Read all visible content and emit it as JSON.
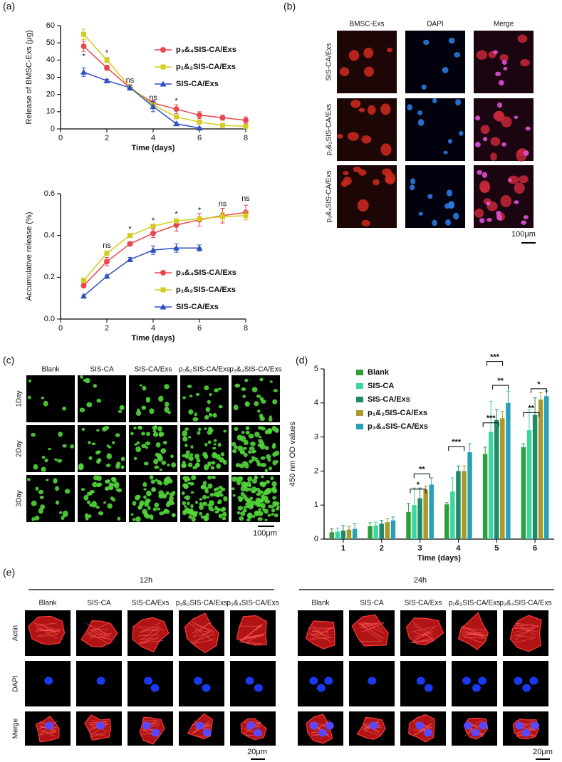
{
  "panel_labels": [
    "(a)",
    "(b)",
    "(c)",
    "(d)",
    "(e)"
  ],
  "chart_data": [
    {
      "type": "line",
      "xlabel": "Time (days)",
      "ylabel": "Release of BMSC-Exs (μg)",
      "x": [
        1,
        2,
        3,
        4,
        5,
        6,
        7,
        8
      ],
      "xlim": [
        0,
        8
      ],
      "xticks": [
        0,
        2,
        4,
        6,
        8
      ],
      "ylim": [
        0,
        60
      ],
      "yticks": [
        0,
        10,
        20,
        30,
        40,
        50,
        60
      ],
      "legend": "upper right",
      "series": [
        {
          "name": "p₃&₄SIS-CA/Exs",
          "color": "#e8474f",
          "marker": "circle",
          "values": [
            48,
            35.5,
            24,
            15,
            11.5,
            8,
            6.5,
            5
          ],
          "errors": [
            3,
            1.5,
            1,
            1.5,
            2.5,
            2,
            1.5,
            2
          ]
        },
        {
          "name": "p₁&₂SIS-CA/Exs",
          "color": "#d4cc20",
          "marker": "square",
          "values": [
            55,
            40,
            24.5,
            14,
            7,
            4,
            2,
            1.5
          ],
          "errors": [
            3,
            1.5,
            1,
            1,
            1,
            0.5,
            0.5,
            0.5
          ]
        },
        {
          "name": "SIS-CA/Exs",
          "color": "#2e4fc4",
          "marker": "triangle",
          "values": [
            33,
            28,
            24,
            13,
            3,
            0.5,
            null,
            null
          ],
          "errors": [
            2.5,
            0.8,
            1.5,
            3,
            1,
            0.5,
            null,
            null
          ]
        }
      ],
      "annotations": [
        {
          "x": 1,
          "y": 42,
          "text": "*"
        },
        {
          "x": 2,
          "y": 44,
          "text": "*"
        },
        {
          "x": 3,
          "y": 28,
          "text": "ns"
        },
        {
          "x": 4,
          "y": 18,
          "text": "ns"
        },
        {
          "x": 5,
          "y": 16,
          "text": "*"
        }
      ]
    },
    {
      "type": "line",
      "xlabel": "Time (days)",
      "ylabel": "Accumulative release (%)",
      "x": [
        1,
        2,
        3,
        4,
        5,
        6,
        7,
        8
      ],
      "xlim": [
        0,
        8
      ],
      "xticks": [
        0,
        2,
        4,
        6,
        8
      ],
      "ylim": [
        0,
        0.6
      ],
      "yticks": [
        {
          "value": 0,
          "label": "0.0"
        },
        0.2,
        0.4,
        0.6
      ],
      "legend": "lower right",
      "series": [
        {
          "name": "p₃&₄SIS-CA/Exs",
          "color": "#e8474f",
          "marker": "circle",
          "values": [
            0.16,
            0.275,
            0.36,
            0.41,
            0.45,
            0.475,
            0.495,
            0.51
          ],
          "errors": [
            0.01,
            0.02,
            0.01,
            0.02,
            0.03,
            0.03,
            0.035,
            0.035
          ]
        },
        {
          "name": "p₁&₂SIS-CA/Exs",
          "color": "#d4cc20",
          "marker": "square",
          "values": [
            0.185,
            0.315,
            0.4,
            0.445,
            0.47,
            0.48,
            0.49,
            0.495
          ],
          "errors": [
            0.01,
            0.01,
            0.01,
            0.01,
            0.01,
            0.01,
            0.02,
            0.02
          ]
        },
        {
          "name": "SIS-CA/Exs",
          "color": "#2e4fc4",
          "marker": "triangle",
          "values": [
            0.11,
            0.205,
            0.285,
            0.33,
            0.34,
            0.34,
            null,
            null
          ],
          "errors": [
            0.005,
            0.005,
            0.01,
            0.02,
            0.02,
            0.015,
            null,
            null
          ]
        }
      ],
      "annotations": [
        {
          "x": 2,
          "y": 0.35,
          "text": "ns"
        },
        {
          "x": 3,
          "y": 0.43,
          "text": "*"
        },
        {
          "x": 4,
          "y": 0.47,
          "text": "*"
        },
        {
          "x": 5,
          "y": 0.5,
          "text": "*"
        },
        {
          "x": 6,
          "y": 0.52,
          "text": "*"
        },
        {
          "x": 7,
          "y": 0.55,
          "text": "ns"
        },
        {
          "x": 8,
          "y": 0.575,
          "text": "ns"
        }
      ]
    },
    {
      "type": "bar",
      "xlabel": "Time (days)",
      "ylabel": "450 nm OD values",
      "categories": [
        "1",
        "2",
        "3",
        "4",
        "5",
        "6"
      ],
      "ylim": [
        0,
        5
      ],
      "yticks": [
        0,
        1,
        2,
        3,
        4,
        5
      ],
      "legend": "upper left",
      "series": [
        {
          "name": "Blank",
          "color": "#2e9e3c",
          "values": [
            0.2,
            0.38,
            0.8,
            1.02,
            2.5,
            2.7
          ],
          "errors": [
            0.1,
            0.1,
            0.25,
            0.05,
            0.2,
            0.1
          ]
        },
        {
          "name": "SIS-CA",
          "color": "#3ed6a0",
          "values": [
            0.22,
            0.4,
            1.0,
            1.4,
            3.15,
            3.2
          ],
          "errors": [
            0.1,
            0.1,
            0.5,
            0.4,
            0.9,
            0.6
          ]
        },
        {
          "name": "SIS-CA/Exs",
          "color": "#1f8a6a",
          "values": [
            0.25,
            0.45,
            1.2,
            2.0,
            3.5,
            3.65
          ],
          "errors": [
            0.15,
            0.1,
            0.3,
            0.15,
            0.3,
            0.5
          ]
        },
        {
          "name": "p₁&₂SIS-CA/Exs",
          "color": "#a89a28",
          "values": [
            0.28,
            0.5,
            1.45,
            2.0,
            3.55,
            4.1
          ],
          "errors": [
            0.1,
            0.1,
            0.1,
            0.15,
            0.2,
            0.2
          ]
        },
        {
          "name": "p₃&₄SIS-CA/Exs",
          "color": "#2aa0b8",
          "values": [
            0.3,
            0.55,
            1.6,
            2.55,
            4.0,
            4.2
          ],
          "errors": [
            0.15,
            0.1,
            0.2,
            0.25,
            0.35,
            0.15
          ]
        }
      ],
      "annotations": [
        {
          "x": 2.95,
          "y": 1.55,
          "text": "*"
        },
        {
          "x": 3.05,
          "y": 2.0,
          "text": "**"
        },
        {
          "x": 3.95,
          "y": 2.8,
          "text": "***"
        },
        {
          "x": 4.85,
          "y": 3.5,
          "text": "***"
        },
        {
          "x": 4.95,
          "y": 5.3,
          "text": "***"
        },
        {
          "x": 5.1,
          "y": 4.6,
          "text": "**"
        },
        {
          "x": 5.9,
          "y": 3.8,
          "text": "**"
        },
        {
          "x": 6.1,
          "y": 4.5,
          "text": "*"
        }
      ]
    }
  ],
  "panel_b": {
    "columns": [
      "BMSC-Exs",
      "DAPI",
      "Merge"
    ],
    "rows": [
      "SIS-CA/Exs",
      "p₁&₂SIS-CA/Exs",
      "p₃&₄SIS-CA/Exs"
    ],
    "scale_bar": "100μm"
  },
  "panel_c": {
    "columns": [
      "Blank",
      "SIS-CA",
      "SIS-CA/Exs",
      "p₁&₂SIS-CA/Exs",
      "p₃&₄SIS-CA/Exs"
    ],
    "rows": [
      "1Day",
      "2Day",
      "3Day"
    ],
    "scale_bar": "100μm"
  },
  "panel_e": {
    "groups": [
      "12h",
      "24h"
    ],
    "columns": [
      "Blank",
      "SIS-CA",
      "SIS-CA/Exs",
      "p₁&₂SIS-CA/Exs",
      "p₃&₄SIS-CA/Exs"
    ],
    "rows": [
      "Actin",
      "DAPI",
      "Merge"
    ],
    "scale_bar": "20μm"
  }
}
